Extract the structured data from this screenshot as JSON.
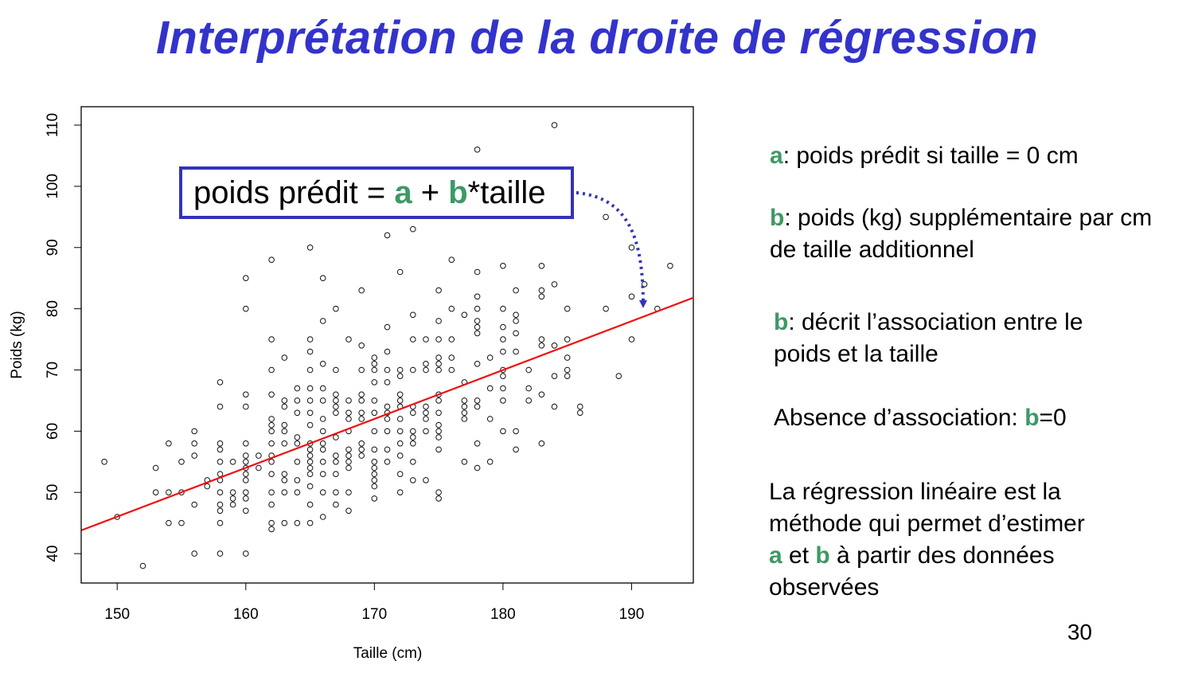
{
  "title": "Interprétation de la droite de régression",
  "equation": {
    "lhs": "poids prédit = ",
    "a": "a",
    "plus": " + ",
    "b": "b",
    "rest": "*taille"
  },
  "notes": [
    {
      "sym": "a",
      "text": ": poids prédit si taille = 0 cm"
    },
    {
      "sym": "b",
      "text": ": poids (kg) supplémentaire par cm de taille additionnel"
    },
    {
      "sym": "b",
      "text": ": décrit l’association entre le poids et la taille"
    },
    {
      "prefix": "Absence d’association: ",
      "sym": "b",
      "suffix": "=0"
    },
    {
      "line1": "La régression linéaire est la",
      "line2": "méthode qui permet d’estimer",
      "a": "a",
      "et": " et ",
      "b": "b",
      "tail": " à partir des données",
      "line4": "observées"
    }
  ],
  "page_number": "30",
  "colors": {
    "title": "#3333cc",
    "highlight": "#3d9966",
    "regression_line": "#ee1111",
    "box_border": "#3333bb",
    "arrow": "#3333bb"
  },
  "chart_data": {
    "type": "scatter",
    "xlabel": "Taille (cm)",
    "ylabel": "Poids (kg)",
    "xlim": [
      147.2,
      194.8
    ],
    "ylim": [
      35.2,
      113.0
    ],
    "xticks": [
      150,
      160,
      170,
      180,
      190
    ],
    "yticks": [
      40,
      50,
      60,
      70,
      80,
      90,
      100,
      110
    ],
    "grid": false,
    "regression_line": {
      "x": [
        147.2,
        194.8
      ],
      "y": [
        43.8,
        81.8
      ]
    },
    "points": [
      [
        149,
        55
      ],
      [
        150,
        46
      ],
      [
        152,
        38
      ],
      [
        153,
        50
      ],
      [
        153,
        54
      ],
      [
        154,
        58
      ],
      [
        154,
        50
      ],
      [
        154,
        45
      ],
      [
        155,
        55
      ],
      [
        155,
        50
      ],
      [
        155,
        45
      ],
      [
        156,
        60
      ],
      [
        156,
        58
      ],
      [
        156,
        56
      ],
      [
        156,
        48
      ],
      [
        156,
        40
      ],
      [
        157,
        52
      ],
      [
        157,
        51
      ],
      [
        158,
        68
      ],
      [
        158,
        64
      ],
      [
        158,
        58
      ],
      [
        158,
        57
      ],
      [
        158,
        55
      ],
      [
        158,
        53
      ],
      [
        158,
        52
      ],
      [
        158,
        50
      ],
      [
        158,
        48
      ],
      [
        158,
        47
      ],
      [
        158,
        45
      ],
      [
        158,
        40
      ],
      [
        159,
        55
      ],
      [
        159,
        50
      ],
      [
        159,
        49
      ],
      [
        159,
        48
      ],
      [
        160,
        85
      ],
      [
        160,
        80
      ],
      [
        160,
        66
      ],
      [
        160,
        64
      ],
      [
        160,
        58
      ],
      [
        160,
        56
      ],
      [
        160,
        55
      ],
      [
        160,
        54
      ],
      [
        160,
        53
      ],
      [
        160,
        52
      ],
      [
        160,
        50
      ],
      [
        160,
        49
      ],
      [
        160,
        47
      ],
      [
        160,
        40
      ],
      [
        161,
        56
      ],
      [
        161,
        54
      ],
      [
        162,
        88
      ],
      [
        162,
        75
      ],
      [
        162,
        70
      ],
      [
        162,
        66
      ],
      [
        162,
        62
      ],
      [
        162,
        61
      ],
      [
        162,
        60
      ],
      [
        162,
        58
      ],
      [
        162,
        56
      ],
      [
        162,
        55
      ],
      [
        162,
        53
      ],
      [
        162,
        50
      ],
      [
        162,
        48
      ],
      [
        162,
        45
      ],
      [
        162,
        44
      ],
      [
        163,
        72
      ],
      [
        163,
        65
      ],
      [
        163,
        64
      ],
      [
        163,
        61
      ],
      [
        163,
        60
      ],
      [
        163,
        58
      ],
      [
        163,
        53
      ],
      [
        163,
        52
      ],
      [
        163,
        50
      ],
      [
        163,
        45
      ],
      [
        164,
        67
      ],
      [
        164,
        65
      ],
      [
        164,
        63
      ],
      [
        164,
        59
      ],
      [
        164,
        58
      ],
      [
        164,
        55
      ],
      [
        164,
        52
      ],
      [
        164,
        50
      ],
      [
        164,
        45
      ],
      [
        165,
        90
      ],
      [
        165,
        75
      ],
      [
        165,
        73
      ],
      [
        165,
        70
      ],
      [
        165,
        67
      ],
      [
        165,
        65
      ],
      [
        165,
        63
      ],
      [
        165,
        61
      ],
      [
        165,
        58
      ],
      [
        165,
        57
      ],
      [
        165,
        56
      ],
      [
        165,
        55
      ],
      [
        165,
        54
      ],
      [
        165,
        53
      ],
      [
        165,
        51
      ],
      [
        165,
        48
      ],
      [
        165,
        45
      ],
      [
        166,
        85
      ],
      [
        166,
        78
      ],
      [
        166,
        71
      ],
      [
        166,
        67
      ],
      [
        166,
        65
      ],
      [
        166,
        62
      ],
      [
        166,
        60
      ],
      [
        166,
        58
      ],
      [
        166,
        57
      ],
      [
        166,
        55
      ],
      [
        166,
        53
      ],
      [
        166,
        50
      ],
      [
        166,
        46
      ],
      [
        167,
        80
      ],
      [
        167,
        70
      ],
      [
        167,
        66
      ],
      [
        167,
        65
      ],
      [
        167,
        64
      ],
      [
        167,
        63
      ],
      [
        167,
        59
      ],
      [
        167,
        56
      ],
      [
        167,
        55
      ],
      [
        167,
        53
      ],
      [
        167,
        50
      ],
      [
        167,
        48
      ],
      [
        168,
        75
      ],
      [
        168,
        65
      ],
      [
        168,
        63
      ],
      [
        168,
        62
      ],
      [
        168,
        60
      ],
      [
        168,
        57
      ],
      [
        168,
        56
      ],
      [
        168,
        55
      ],
      [
        168,
        54
      ],
      [
        168,
        50
      ],
      [
        168,
        47
      ],
      [
        169,
        83
      ],
      [
        169,
        74
      ],
      [
        169,
        70
      ],
      [
        169,
        66
      ],
      [
        169,
        65
      ],
      [
        169,
        63
      ],
      [
        169,
        62
      ],
      [
        169,
        58
      ],
      [
        169,
        57
      ],
      [
        169,
        56
      ],
      [
        170,
        72
      ],
      [
        170,
        71
      ],
      [
        170,
        70
      ],
      [
        170,
        68
      ],
      [
        170,
        65
      ],
      [
        170,
        63
      ],
      [
        170,
        60
      ],
      [
        170,
        57
      ],
      [
        170,
        55
      ],
      [
        170,
        54
      ],
      [
        170,
        53
      ],
      [
        170,
        52
      ],
      [
        170,
        51
      ],
      [
        170,
        49
      ],
      [
        171,
        92
      ],
      [
        171,
        77
      ],
      [
        171,
        73
      ],
      [
        171,
        70
      ],
      [
        171,
        68
      ],
      [
        171,
        64
      ],
      [
        171,
        63
      ],
      [
        171,
        62
      ],
      [
        171,
        60
      ],
      [
        171,
        57
      ],
      [
        171,
        55
      ],
      [
        172,
        86
      ],
      [
        172,
        70
      ],
      [
        172,
        69
      ],
      [
        172,
        66
      ],
      [
        172,
        65
      ],
      [
        172,
        64
      ],
      [
        172,
        62
      ],
      [
        172,
        60
      ],
      [
        172,
        58
      ],
      [
        172,
        56
      ],
      [
        172,
        53
      ],
      [
        172,
        50
      ],
      [
        173,
        93
      ],
      [
        173,
        79
      ],
      [
        173,
        75
      ],
      [
        173,
        70
      ],
      [
        173,
        64
      ],
      [
        173,
        63
      ],
      [
        173,
        60
      ],
      [
        173,
        59
      ],
      [
        173,
        58
      ],
      [
        173,
        55
      ],
      [
        173,
        52
      ],
      [
        174,
        75
      ],
      [
        174,
        71
      ],
      [
        174,
        70
      ],
      [
        174,
        64
      ],
      [
        174,
        63
      ],
      [
        174,
        62
      ],
      [
        174,
        60
      ],
      [
        174,
        52
      ],
      [
        175,
        83
      ],
      [
        175,
        78
      ],
      [
        175,
        75
      ],
      [
        175,
        72
      ],
      [
        175,
        71
      ],
      [
        175,
        70
      ],
      [
        175,
        66
      ],
      [
        175,
        65
      ],
      [
        175,
        63
      ],
      [
        175,
        61
      ],
      [
        175,
        60
      ],
      [
        175,
        59
      ],
      [
        175,
        57
      ],
      [
        175,
        50
      ],
      [
        175,
        49
      ],
      [
        176,
        88
      ],
      [
        176,
        80
      ],
      [
        176,
        75
      ],
      [
        176,
        72
      ],
      [
        176,
        70
      ],
      [
        177,
        79
      ],
      [
        177,
        68
      ],
      [
        177,
        65
      ],
      [
        177,
        64
      ],
      [
        177,
        63
      ],
      [
        177,
        62
      ],
      [
        177,
        55
      ],
      [
        178,
        106
      ],
      [
        178,
        86
      ],
      [
        178,
        82
      ],
      [
        178,
        80
      ],
      [
        178,
        78
      ],
      [
        178,
        77
      ],
      [
        178,
        76
      ],
      [
        178,
        71
      ],
      [
        178,
        65
      ],
      [
        178,
        64
      ],
      [
        178,
        58
      ],
      [
        178,
        54
      ],
      [
        179,
        72
      ],
      [
        179,
        67
      ],
      [
        179,
        62
      ],
      [
        179,
        55
      ],
      [
        180,
        87
      ],
      [
        180,
        80
      ],
      [
        180,
        77
      ],
      [
        180,
        75
      ],
      [
        180,
        73
      ],
      [
        180,
        70
      ],
      [
        180,
        69
      ],
      [
        180,
        67
      ],
      [
        180,
        65
      ],
      [
        180,
        60
      ],
      [
        181,
        83
      ],
      [
        181,
        79
      ],
      [
        181,
        78
      ],
      [
        181,
        76
      ],
      [
        181,
        73
      ],
      [
        181,
        60
      ],
      [
        181,
        57
      ],
      [
        182,
        70
      ],
      [
        182,
        67
      ],
      [
        182,
        65
      ],
      [
        183,
        87
      ],
      [
        183,
        83
      ],
      [
        183,
        82
      ],
      [
        183,
        75
      ],
      [
        183,
        74
      ],
      [
        183,
        66
      ],
      [
        183,
        58
      ],
      [
        184,
        110
      ],
      [
        184,
        84
      ],
      [
        184,
        74
      ],
      [
        184,
        69
      ],
      [
        184,
        64
      ],
      [
        185,
        80
      ],
      [
        185,
        75
      ],
      [
        185,
        72
      ],
      [
        185,
        70
      ],
      [
        185,
        69
      ],
      [
        186,
        64
      ],
      [
        186,
        63
      ],
      [
        188,
        95
      ],
      [
        188,
        80
      ],
      [
        189,
        69
      ],
      [
        190,
        90
      ],
      [
        190,
        82
      ],
      [
        190,
        75
      ],
      [
        191,
        84
      ],
      [
        192,
        80
      ],
      [
        193,
        87
      ]
    ]
  }
}
